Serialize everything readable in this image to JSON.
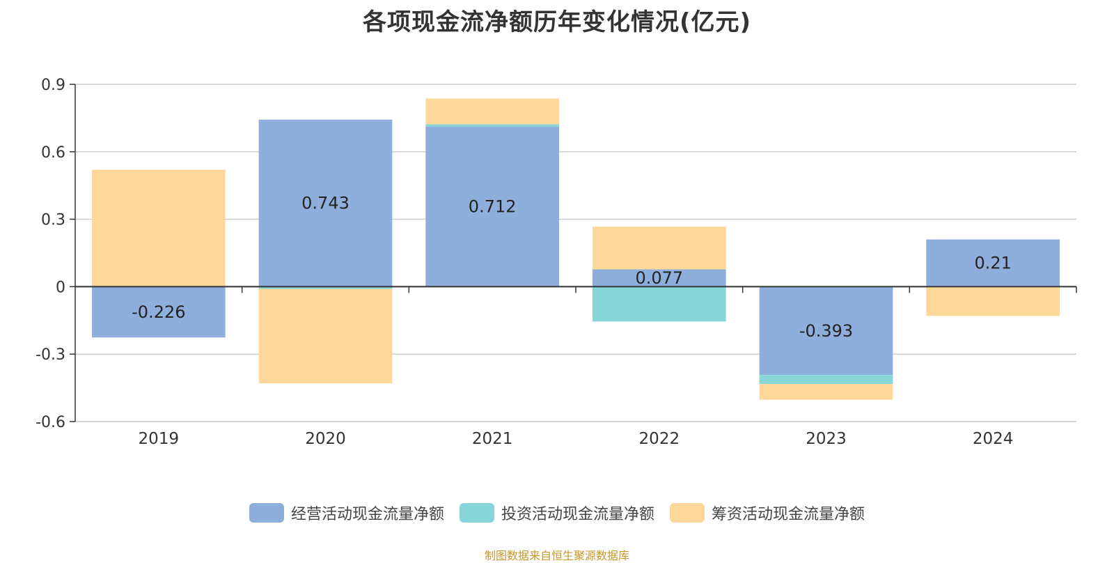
{
  "chart_data": {
    "type": "bar",
    "stacked": true,
    "title": "各项现金流净额历年变化情况(亿元)",
    "categories": [
      "2019",
      "2020",
      "2021",
      "2022",
      "2023",
      "2024"
    ],
    "series": [
      {
        "name": "经营活动现金流量净额",
        "color": "#8eaedb",
        "values": [
          -0.226,
          0.743,
          0.712,
          0.077,
          -0.393,
          0.21
        ],
        "labels": [
          "-0.226",
          "0.743",
          "0.712",
          "0.077",
          "-0.393",
          "0.21"
        ]
      },
      {
        "name": "投资活动现金流量净额",
        "color": "#88d5d8",
        "values": [
          0.0,
          -0.01,
          0.01,
          -0.155,
          -0.04,
          0.0
        ]
      },
      {
        "name": "筹资活动现金流量净额",
        "color": "#fdd899",
        "values": [
          0.52,
          -0.42,
          0.115,
          0.19,
          -0.07,
          -0.13
        ]
      }
    ],
    "ylim": [
      -0.6,
      0.9
    ],
    "yticks": [
      "0.9",
      "0.6",
      "0.3",
      "0",
      "-0.3",
      "-0.6"
    ],
    "ytick_values": [
      0.9,
      0.6,
      0.3,
      0,
      -0.3,
      -0.6
    ],
    "grid": true,
    "legend_position": "bottom"
  },
  "source": "制图数据来自恒生聚源数据库"
}
